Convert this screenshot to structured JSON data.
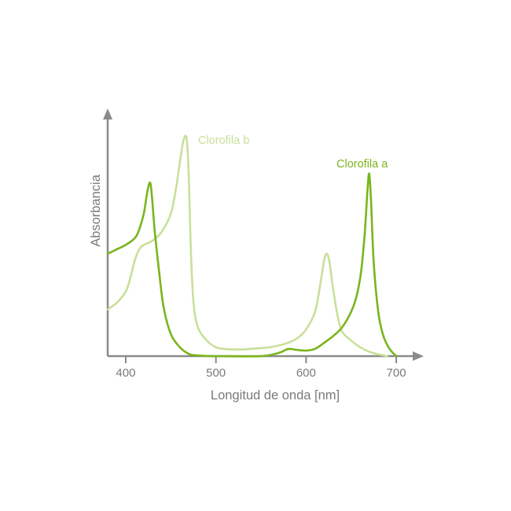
{
  "chart_data": {
    "type": "line",
    "title": "",
    "xlabel": "Longitud de onda [nm]",
    "ylabel": "Absorbancia",
    "xlim": [
      380,
      720
    ],
    "ylim": [
      0,
      1.0
    ],
    "xticks": [
      400,
      500,
      600,
      700
    ],
    "grid": false,
    "legend": "inline-labels",
    "series": [
      {
        "name": "Clorofila a",
        "color": "#7ab51d",
        "points": [
          [
            380,
            0.46
          ],
          [
            390,
            0.48
          ],
          [
            400,
            0.5
          ],
          [
            410,
            0.53
          ],
          [
            415,
            0.57
          ],
          [
            420,
            0.64
          ],
          [
            424,
            0.74
          ],
          [
            427,
            0.78
          ],
          [
            429,
            0.72
          ],
          [
            432,
            0.57
          ],
          [
            437,
            0.38
          ],
          [
            442,
            0.22
          ],
          [
            450,
            0.1
          ],
          [
            460,
            0.04
          ],
          [
            470,
            0.01
          ],
          [
            480,
            0.003
          ],
          [
            500,
            0.0
          ],
          [
            550,
            0.0
          ],
          [
            570,
            0.015
          ],
          [
            580,
            0.032
          ],
          [
            590,
            0.028
          ],
          [
            600,
            0.025
          ],
          [
            610,
            0.033
          ],
          [
            620,
            0.06
          ],
          [
            630,
            0.09
          ],
          [
            640,
            0.13
          ],
          [
            650,
            0.2
          ],
          [
            656,
            0.27
          ],
          [
            661,
            0.38
          ],
          [
            665,
            0.55
          ],
          [
            668,
            0.74
          ],
          [
            670,
            0.82
          ],
          [
            672,
            0.7
          ],
          [
            675,
            0.42
          ],
          [
            680,
            0.2
          ],
          [
            685,
            0.1
          ],
          [
            690,
            0.05
          ],
          [
            695,
            0.02
          ],
          [
            700,
            0.0
          ]
        ]
      },
      {
        "name": "Clorofila b",
        "color": "#c8e09a",
        "points": [
          [
            380,
            0.21
          ],
          [
            390,
            0.24
          ],
          [
            400,
            0.29
          ],
          [
            405,
            0.35
          ],
          [
            410,
            0.43
          ],
          [
            415,
            0.48
          ],
          [
            420,
            0.5
          ],
          [
            430,
            0.52
          ],
          [
            440,
            0.56
          ],
          [
            450,
            0.64
          ],
          [
            456,
            0.76
          ],
          [
            460,
            0.87
          ],
          [
            463,
            0.95
          ],
          [
            466,
            0.99
          ],
          [
            468,
            0.96
          ],
          [
            470,
            0.8
          ],
          [
            472,
            0.5
          ],
          [
            475,
            0.25
          ],
          [
            480,
            0.13
          ],
          [
            490,
            0.07
          ],
          [
            500,
            0.04
          ],
          [
            510,
            0.032
          ],
          [
            520,
            0.03
          ],
          [
            530,
            0.03
          ],
          [
            540,
            0.033
          ],
          [
            550,
            0.036
          ],
          [
            560,
            0.04
          ],
          [
            570,
            0.048
          ],
          [
            580,
            0.06
          ],
          [
            590,
            0.08
          ],
          [
            600,
            0.12
          ],
          [
            610,
            0.2
          ],
          [
            616,
            0.33
          ],
          [
            620,
            0.43
          ],
          [
            623,
            0.46
          ],
          [
            626,
            0.42
          ],
          [
            630,
            0.3
          ],
          [
            635,
            0.18
          ],
          [
            640,
            0.11
          ],
          [
            650,
            0.07
          ],
          [
            660,
            0.04
          ],
          [
            670,
            0.02
          ],
          [
            680,
            0.008
          ],
          [
            690,
            0.0
          ]
        ]
      }
    ],
    "annotations": [
      {
        "text": "Clorofila b",
        "series": "Clorofila b"
      },
      {
        "text": "Clorofila a",
        "series": "Clorofila a"
      }
    ],
    "axis_color": "#8a8a8a",
    "text_color": "#7a7a7a"
  }
}
